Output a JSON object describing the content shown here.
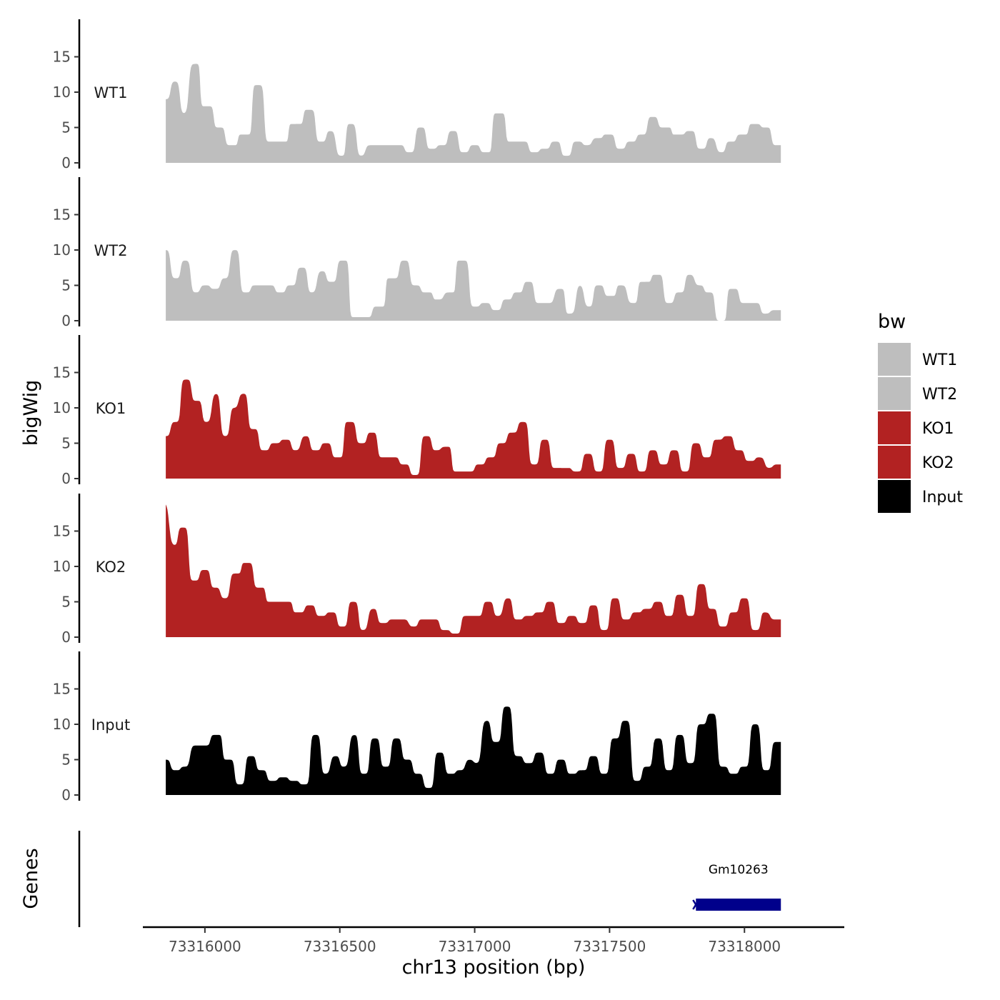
{
  "chart_data": {
    "type": "area",
    "xlabel": "chr13 position (bp)",
    "ylabel": "bigWig",
    "genes_label": "Genes",
    "xlim": [
      73315770,
      73318370
    ],
    "data_xrange": [
      73315855,
      73318135
    ],
    "x_ticks": [
      73316000,
      73316500,
      73317000,
      73317500,
      73318000
    ],
    "x_tick_labels": [
      "73316000",
      "73316500",
      "73317000",
      "73317500",
      "73318000"
    ],
    "ylim": [
      0,
      20
    ],
    "y_ticks": [
      0,
      5,
      10,
      15
    ],
    "y_tick_labels": [
      "0",
      "5",
      "10",
      "15"
    ],
    "legend": {
      "title": "bw",
      "entries": [
        {
          "label": "WT1",
          "color": "#bebebe"
        },
        {
          "label": "WT2",
          "color": "#bebebe"
        },
        {
          "label": "KO1",
          "color": "#b22222"
        },
        {
          "label": "KO2",
          "color": "#b22222"
        },
        {
          "label": "Input",
          "color": "#000000"
        }
      ]
    },
    "series": [
      {
        "name": "WT1",
        "color": "#bebebe",
        "peaks": [
          [
            73315855,
            9
          ],
          [
            73315890,
            11.5
          ],
          [
            73315925,
            7
          ],
          [
            73315955,
            14
          ],
          [
            73316010,
            8
          ],
          [
            73316055,
            5
          ],
          [
            73316095,
            2.5
          ],
          [
            73316150,
            4
          ],
          [
            73316200,
            11
          ],
          [
            73316240,
            3
          ],
          [
            73316280,
            3
          ],
          [
            73316340,
            5.5
          ],
          [
            73316390,
            7.5
          ],
          [
            73316430,
            3
          ],
          [
            73316470,
            4.5
          ],
          [
            73316500,
            1
          ],
          [
            73316545,
            5.5
          ],
          [
            73316580,
            1
          ],
          [
            73316610,
            2.5
          ],
          [
            73316650,
            2.5
          ],
          [
            73316680,
            2.5
          ],
          [
            73316720,
            2.5
          ],
          [
            73316760,
            1.5
          ],
          [
            73316800,
            5
          ],
          [
            73316840,
            2
          ],
          [
            73316880,
            2.5
          ],
          [
            73316920,
            4.5
          ],
          [
            73316960,
            1.5
          ],
          [
            73317000,
            2.5
          ],
          [
            73317040,
            1.5
          ],
          [
            73317090,
            7
          ],
          [
            73317140,
            3
          ],
          [
            73317180,
            3
          ],
          [
            73317220,
            1.5
          ],
          [
            73317260,
            2
          ],
          [
            73317300,
            3
          ],
          [
            73317340,
            1
          ],
          [
            73317380,
            3
          ],
          [
            73317420,
            2.5
          ],
          [
            73317450,
            3.5
          ],
          [
            73317500,
            4
          ],
          [
            73317540,
            2
          ],
          [
            73317580,
            3
          ],
          [
            73317620,
            4
          ],
          [
            73317660,
            6.5
          ],
          [
            73317700,
            5
          ],
          [
            73317760,
            4
          ],
          [
            73317800,
            4.5
          ],
          [
            73317840,
            2
          ],
          [
            73317880,
            3.5
          ],
          [
            73317910,
            1.5
          ],
          [
            73317950,
            3
          ],
          [
            73317990,
            4
          ],
          [
            73318040,
            5.5
          ],
          [
            73318080,
            5
          ],
          [
            73318120,
            2.5
          ]
        ]
      },
      {
        "name": "WT2",
        "color": "#bebebe",
        "peaks": [
          [
            73315855,
            10
          ],
          [
            73315890,
            6
          ],
          [
            73315930,
            8.5
          ],
          [
            73315965,
            4
          ],
          [
            73316000,
            5
          ],
          [
            73316040,
            4.5
          ],
          [
            73316075,
            6
          ],
          [
            73316110,
            10
          ],
          [
            73316150,
            4
          ],
          [
            73316190,
            5
          ],
          [
            73316240,
            5
          ],
          [
            73316280,
            4
          ],
          [
            73316320,
            5
          ],
          [
            73316360,
            7.5
          ],
          [
            73316400,
            4
          ],
          [
            73316430,
            7
          ],
          [
            73316470,
            5.5
          ],
          [
            73316510,
            8.5
          ],
          [
            73316560,
            0.5
          ],
          [
            73316600,
            0.5
          ],
          [
            73316640,
            2
          ],
          [
            73316700,
            6
          ],
          [
            73316740,
            8.5
          ],
          [
            73316780,
            5
          ],
          [
            73316820,
            4
          ],
          [
            73316870,
            3
          ],
          [
            73316900,
            4
          ],
          [
            73316960,
            8.5
          ],
          [
            73317000,
            2
          ],
          [
            73317040,
            2.5
          ],
          [
            73317080,
            1.5
          ],
          [
            73317120,
            3
          ],
          [
            73317160,
            4
          ],
          [
            73317200,
            5.5
          ],
          [
            73317240,
            2.5
          ],
          [
            73317280,
            2.5
          ],
          [
            73317310,
            4.5
          ],
          [
            73317360,
            1
          ],
          [
            73317390,
            5
          ],
          [
            73317420,
            2
          ],
          [
            73317460,
            5
          ],
          [
            73317500,
            3.5
          ],
          [
            73317550,
            5
          ],
          [
            73317580,
            2.5
          ],
          [
            73317630,
            5.5
          ],
          [
            73317680,
            6.5
          ],
          [
            73317720,
            2.5
          ],
          [
            73317760,
            4
          ],
          [
            73317800,
            6.5
          ],
          [
            73317830,
            5
          ],
          [
            73317870,
            4
          ],
          [
            73317910,
            0
          ],
          [
            73317960,
            4.5
          ],
          [
            73318000,
            2.5
          ],
          [
            73318040,
            2.5
          ],
          [
            73318080,
            1
          ],
          [
            73318110,
            1.5
          ]
        ]
      },
      {
        "name": "KO1",
        "color": "#b22222",
        "peaks": [
          [
            73315855,
            6
          ],
          [
            73315890,
            8
          ],
          [
            73315930,
            14
          ],
          [
            73315970,
            11
          ],
          [
            73316010,
            8
          ],
          [
            73316040,
            12
          ],
          [
            73316075,
            6
          ],
          [
            73316110,
            10
          ],
          [
            73316140,
            12
          ],
          [
            73316180,
            7
          ],
          [
            73316220,
            4
          ],
          [
            73316260,
            5
          ],
          [
            73316300,
            5.5
          ],
          [
            73316340,
            4
          ],
          [
            73316370,
            6
          ],
          [
            73316410,
            4
          ],
          [
            73316450,
            5
          ],
          [
            73316490,
            3
          ],
          [
            73316540,
            8
          ],
          [
            73316580,
            5
          ],
          [
            73316620,
            6.5
          ],
          [
            73316660,
            3
          ],
          [
            73316700,
            3
          ],
          [
            73316740,
            2
          ],
          [
            73316780,
            0.5
          ],
          [
            73316820,
            6
          ],
          [
            73316860,
            4
          ],
          [
            73316890,
            4.5
          ],
          [
            73316940,
            1
          ],
          [
            73316980,
            1
          ],
          [
            73317020,
            2
          ],
          [
            73317060,
            3
          ],
          [
            73317100,
            5
          ],
          [
            73317140,
            6.5
          ],
          [
            73317180,
            8
          ],
          [
            73317220,
            2
          ],
          [
            73317260,
            5.5
          ],
          [
            73317300,
            1.5
          ],
          [
            73317340,
            1.5
          ],
          [
            73317380,
            1
          ],
          [
            73317420,
            3.5
          ],
          [
            73317460,
            1
          ],
          [
            73317500,
            5.5
          ],
          [
            73317540,
            1.5
          ],
          [
            73317580,
            3.5
          ],
          [
            73317620,
            1
          ],
          [
            73317660,
            4
          ],
          [
            73317700,
            2
          ],
          [
            73317740,
            4
          ],
          [
            73317780,
            1
          ],
          [
            73317820,
            5
          ],
          [
            73317860,
            3
          ],
          [
            73317900,
            5.5
          ],
          [
            73317940,
            6
          ],
          [
            73317980,
            4
          ],
          [
            73318020,
            2.5
          ],
          [
            73318060,
            3
          ],
          [
            73318090,
            1.5
          ],
          [
            73318120,
            2
          ]
        ]
      },
      {
        "name": "KO2",
        "color": "#b22222",
        "peaks": [
          [
            73315855,
            19
          ],
          [
            73315880,
            13
          ],
          [
            73315920,
            15.5
          ],
          [
            73315960,
            8
          ],
          [
            73316000,
            9.5
          ],
          [
            73316040,
            7
          ],
          [
            73316075,
            5.5
          ],
          [
            73316110,
            9
          ],
          [
            73316160,
            10.5
          ],
          [
            73316200,
            7
          ],
          [
            73316250,
            5
          ],
          [
            73316300,
            5
          ],
          [
            73316350,
            3.5
          ],
          [
            73316390,
            4.5
          ],
          [
            73316430,
            3
          ],
          [
            73316470,
            3.5
          ],
          [
            73316510,
            1.5
          ],
          [
            73316550,
            5
          ],
          [
            73316590,
            1
          ],
          [
            73316620,
            4
          ],
          [
            73316660,
            2
          ],
          [
            73316700,
            2.5
          ],
          [
            73316740,
            2.5
          ],
          [
            73316770,
            1.5
          ],
          [
            73316810,
            2.5
          ],
          [
            73316850,
            2.5
          ],
          [
            73316890,
            1
          ],
          [
            73316930,
            0.5
          ],
          [
            73316970,
            3
          ],
          [
            73317010,
            3
          ],
          [
            73317050,
            5
          ],
          [
            73317090,
            3
          ],
          [
            73317120,
            5.5
          ],
          [
            73317160,
            2.5
          ],
          [
            73317200,
            3
          ],
          [
            73317240,
            3.5
          ],
          [
            73317280,
            5
          ],
          [
            73317320,
            2
          ],
          [
            73317360,
            3
          ],
          [
            73317400,
            2
          ],
          [
            73317440,
            4.5
          ],
          [
            73317480,
            1
          ],
          [
            73317520,
            5.5
          ],
          [
            73317560,
            2.5
          ],
          [
            73317600,
            3.5
          ],
          [
            73317640,
            4
          ],
          [
            73317680,
            5
          ],
          [
            73317720,
            3
          ],
          [
            73317760,
            6
          ],
          [
            73317800,
            3
          ],
          [
            73317840,
            7.5
          ],
          [
            73317880,
            4
          ],
          [
            73317920,
            1.5
          ],
          [
            73317960,
            3.5
          ],
          [
            73318000,
            5.5
          ],
          [
            73318040,
            1
          ],
          [
            73318080,
            3.5
          ],
          [
            73318110,
            2.5
          ]
        ]
      },
      {
        "name": "Input",
        "color": "#000000",
        "peaks": [
          [
            73315855,
            5
          ],
          [
            73315890,
            3.5
          ],
          [
            73315930,
            4
          ],
          [
            73315960,
            7
          ],
          [
            73316000,
            7
          ],
          [
            73316040,
            8.5
          ],
          [
            73316090,
            5
          ],
          [
            73316130,
            1.5
          ],
          [
            73316170,
            5.5
          ],
          [
            73316210,
            3.5
          ],
          [
            73316250,
            2
          ],
          [
            73316290,
            2.5
          ],
          [
            73316330,
            2
          ],
          [
            73316370,
            1.5
          ],
          [
            73316410,
            8.5
          ],
          [
            73316450,
            3
          ],
          [
            73316480,
            5.5
          ],
          [
            73316520,
            4
          ],
          [
            73316550,
            8.5
          ],
          [
            73316590,
            3
          ],
          [
            73316630,
            8
          ],
          [
            73316670,
            4
          ],
          [
            73316710,
            8
          ],
          [
            73316750,
            5
          ],
          [
            73316790,
            3
          ],
          [
            73316830,
            1
          ],
          [
            73316870,
            6
          ],
          [
            73316910,
            3
          ],
          [
            73316950,
            3.5
          ],
          [
            73316980,
            5
          ],
          [
            73317010,
            4.5
          ],
          [
            73317040,
            10.5
          ],
          [
            73317080,
            7.5
          ],
          [
            73317120,
            12.5
          ],
          [
            73317160,
            5.5
          ],
          [
            73317200,
            4.5
          ],
          [
            73317240,
            6
          ],
          [
            73317280,
            3
          ],
          [
            73317320,
            5
          ],
          [
            73317360,
            3
          ],
          [
            73317400,
            3.5
          ],
          [
            73317440,
            5.5
          ],
          [
            73317480,
            3
          ],
          [
            73317520,
            8
          ],
          [
            73317560,
            10.5
          ],
          [
            73317600,
            2
          ],
          [
            73317640,
            4
          ],
          [
            73317680,
            8
          ],
          [
            73317720,
            3.5
          ],
          [
            73317760,
            8.5
          ],
          [
            73317800,
            4.5
          ],
          [
            73317840,
            10
          ],
          [
            73317880,
            11.5
          ],
          [
            73317920,
            4
          ],
          [
            73317960,
            3
          ],
          [
            73318000,
            4
          ],
          [
            73318040,
            10
          ],
          [
            73318080,
            3.5
          ],
          [
            73318120,
            7.5
          ]
        ]
      }
    ],
    "gene": {
      "name": "Gm10263",
      "start": 73317820,
      "end": 73318135,
      "color": "#00008b",
      "strand": "-"
    }
  }
}
